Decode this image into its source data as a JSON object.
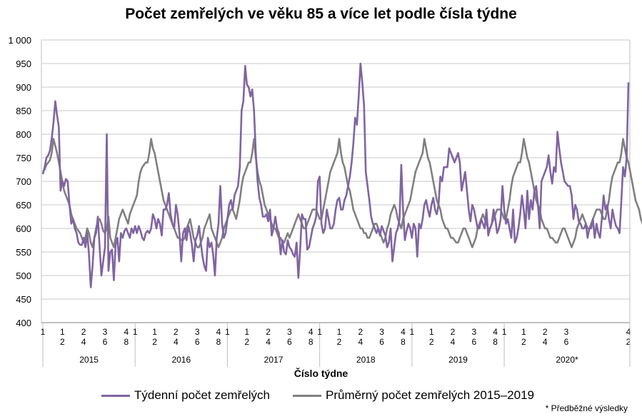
{
  "chart_data": {
    "type": "line",
    "title": "Počet zemřelých ve věku 85 a více let podle čísla týdne",
    "xlabel": "Číslo týdne",
    "ylabel": "",
    "ylim": [
      400,
      1000
    ],
    "y_ticks": [
      "400",
      "450",
      "500",
      "550",
      "600",
      "650",
      "700",
      "750",
      "800",
      "850",
      "900",
      "950",
      "1 000"
    ],
    "grid": "horizontal",
    "legend_position": "bottom",
    "years": [
      {
        "label": "2015",
        "week_ticks": [
          "1",
          "1\n2",
          "2\n4",
          "3\n6",
          "4\n8"
        ]
      },
      {
        "label": "2016",
        "week_ticks": [
          "1",
          "1\n2",
          "2\n4",
          "3\n6",
          "4\n8"
        ]
      },
      {
        "label": "2017",
        "week_ticks": [
          "1",
          "1\n2",
          "2\n4",
          "3\n6",
          "4\n8"
        ]
      },
      {
        "label": "2018",
        "week_ticks": [
          "1",
          "1\n2",
          "2\n4",
          "3\n6",
          "4\n8"
        ]
      },
      {
        "label": "2019",
        "week_ticks": [
          "1",
          "1\n2",
          "2\n4",
          "3\n6",
          "4\n8"
        ]
      },
      {
        "label": "2020*",
        "week_ticks": [
          "1",
          "1\n2",
          "2\n4",
          "3\n6",
          "4\n2"
        ]
      }
    ],
    "series": [
      {
        "name": "Týdenní počet zemřelých",
        "color": "#8064A2",
        "values": [
          715,
          730,
          750,
          755,
          765,
          790,
          825,
          870,
          840,
          815,
          680,
          700,
          690,
          705,
          700,
          650,
          610,
          620,
          600,
          590,
          570,
          565,
          565,
          580,
          560,
          590,
          545,
          475,
          520,
          580,
          590,
          625,
          560,
          500,
          530,
          560,
          800,
          510,
          550,
          555,
          490,
          565,
          580,
          530,
          590,
          580,
          595,
          600,
          590,
          580,
          600,
          590,
          605,
          590,
          605,
          595,
          580,
          575,
          590,
          595,
          590,
          600,
          630,
          620,
          600,
          620,
          610,
          585,
          640,
          640,
          650,
          675,
          630,
          610,
          600,
          650,
          630,
          590,
          530,
          590,
          600,
          575,
          605,
          590,
          565,
          530,
          575,
          585,
          605,
          570,
          540,
          520,
          510,
          580,
          560,
          570,
          545,
          500,
          580,
          610,
          690,
          610,
          580,
          590,
          620,
          650,
          660,
          640,
          670,
          680,
          690,
          730,
          850,
          870,
          945,
          905,
          900,
          880,
          895,
          850,
          760,
          700,
          665,
          650,
          625,
          625,
          630,
          615,
          640,
          585,
          600,
          625,
          600,
          590,
          545,
          575,
          550,
          545,
          575,
          560,
          555,
          545,
          540,
          570,
          495,
          555,
          630,
          620,
          620,
          555,
          560,
          580,
          600,
          610,
          625,
          700,
          710,
          610,
          590,
          600,
          640,
          620,
          600,
          600,
          610,
          640,
          660,
          665,
          640,
          640,
          660,
          670,
          690,
          710,
          740,
          780,
          835,
          820,
          880,
          950,
          910,
          860,
          720,
          690,
          660,
          625,
          610,
          600,
          590,
          600,
          585,
          605,
          595,
          585,
          560,
          570,
          600,
          530,
          560,
          590,
          600,
          620,
          735,
          640,
          575,
          595,
          610,
          600,
          580,
          610,
          600,
          540,
          610,
          600,
          620,
          650,
          660,
          640,
          625,
          650,
          665,
          640,
          630,
          650,
          710,
          700,
          730,
          730,
          730,
          770,
          760,
          750,
          740,
          750,
          760,
          740,
          680,
          700,
          720,
          680,
          640,
          615,
          650,
          640,
          620,
          600,
          600,
          620,
          610,
          600,
          640,
          585,
          600,
          610,
          640,
          620,
          590,
          600,
          620,
          690,
          640,
          610,
          620,
          600,
          580,
          640,
          570,
          580,
          600,
          630,
          670,
          640,
          600,
          680,
          620,
          660,
          640,
          680,
          690,
          650,
          600,
          700,
          710,
          720,
          730,
          755,
          720,
          695,
          730,
          720,
          805,
          770,
          740,
          720,
          700,
          695,
          690,
          690,
          670,
          620,
          650,
          640,
          615,
          610,
          600,
          600,
          610,
          580,
          600,
          600,
          620,
          580,
          610,
          590,
          580,
          620,
          670,
          640,
          650,
          620,
          600,
          640,
          620,
          605,
          600,
          590,
          660,
          730,
          710,
          750,
          910
        ]
      },
      {
        "name": "Průměrný počet zemřelých 2015–2019",
        "color": "#808080",
        "values": [
          720,
          725,
          735,
          740,
          745,
          760,
          790,
          775,
          760,
          740,
          720,
          700,
          680,
          670,
          660,
          650,
          630,
          620,
          610,
          600,
          595,
          590,
          580,
          570,
          580,
          600,
          590,
          570,
          560,
          580,
          600,
          615,
          620,
          610,
          595,
          590,
          600,
          625,
          580,
          570,
          560,
          580,
          600,
          620,
          630,
          640,
          630,
          620,
          610,
          630,
          640,
          650,
          660,
          670,
          700,
          720,
          730,
          735,
          740,
          740,
          760,
          790,
          770,
          760,
          740,
          720,
          700,
          680,
          660,
          650,
          640,
          630,
          620,
          610,
          600,
          590,
          580,
          580,
          575,
          575,
          580,
          600,
          610,
          620,
          600,
          580,
          570,
          560,
          560,
          570,
          580,
          600,
          610,
          620,
          630,
          600,
          590,
          580,
          570,
          560,
          570,
          580,
          600,
          610,
          620,
          630,
          640,
          640,
          630,
          620,
          640,
          660,
          690,
          710,
          720,
          730,
          740,
          740,
          760,
          790,
          750,
          720,
          700,
          690,
          670,
          650,
          640,
          630,
          620,
          610,
          600,
          600,
          590,
          580,
          580,
          570,
          570,
          580,
          590,
          580,
          590,
          600,
          610,
          620,
          630,
          620,
          610,
          600,
          600,
          610,
          620,
          630,
          640,
          640,
          640,
          630,
          620,
          620,
          640,
          660,
          680,
          700,
          720,
          730,
          740,
          750,
          760,
          790,
          760,
          740,
          730,
          710,
          690,
          680,
          660,
          640,
          630,
          620,
          610,
          600,
          600,
          590,
          590,
          580,
          580,
          590,
          600,
          610,
          610,
          600,
          590,
          580,
          570,
          580,
          600,
          610,
          630,
          640,
          650,
          640,
          620,
          610,
          600,
          620,
          630,
          640,
          650,
          660,
          680,
          700,
          720,
          730,
          740,
          750,
          760,
          790,
          770,
          750,
          740,
          720,
          700,
          680,
          660,
          650,
          640,
          620,
          610,
          600,
          600,
          590,
          580,
          580,
          575,
          570,
          570,
          580,
          590,
          600,
          600,
          590,
          580,
          570,
          560,
          570,
          580,
          600,
          610,
          620,
          630,
          620,
          610,
          600,
          600,
          610,
          620,
          630,
          640,
          640,
          640,
          630,
          620,
          620,
          640,
          660,
          690,
          710,
          720,
          730,
          740,
          740,
          760,
          790,
          770,
          750,
          740,
          720,
          700,
          680,
          660,
          650,
          640,
          620,
          610,
          600,
          600,
          590,
          580,
          580,
          575,
          570,
          570,
          580,
          590,
          600,
          600,
          590,
          580,
          570,
          560,
          570,
          580,
          600,
          610,
          620,
          630,
          620,
          610,
          600,
          600,
          610,
          620,
          630,
          640,
          640,
          640,
          630,
          620,
          620,
          640,
          660,
          690,
          710,
          720,
          730,
          740,
          740,
          760,
          790,
          770,
          750,
          740,
          720,
          700,
          680,
          660,
          650,
          640,
          620,
          610,
          600,
          600,
          590,
          580,
          580,
          575,
          570,
          570,
          580,
          590,
          600,
          600,
          590,
          580,
          570,
          560,
          570,
          580,
          600,
          610,
          620,
          630,
          640,
          640,
          610
        ]
      }
    ]
  },
  "legend": {
    "item1": "Týdenní počet zemřelých",
    "item2": "Průměrný počet zemřelých 2015–2019"
  },
  "footnote": "* Předběžné výsledky"
}
